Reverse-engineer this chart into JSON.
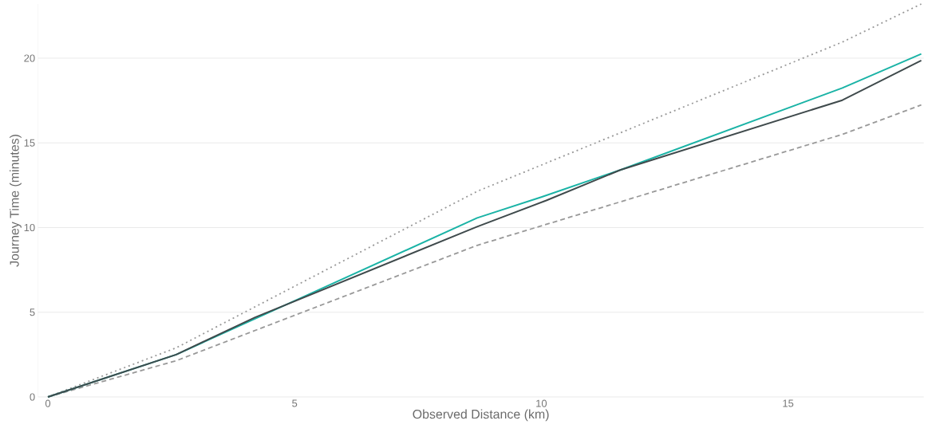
{
  "chart_data": {
    "type": "line",
    "xlabel": "Observed Distance (km)",
    "ylabel": "Journey Time (minutes)",
    "xlim": [
      -0.2,
      17.75
    ],
    "ylim": [
      0,
      23.2
    ],
    "xticks": [
      0,
      5,
      10,
      15
    ],
    "yticks": [
      0,
      5,
      10,
      15,
      20
    ],
    "grid": "y",
    "series": [
      {
        "color": "#999999",
        "line_style": "dotted",
        "x": [
          0,
          2.6,
          8.7,
          16.1,
          17.7
        ],
        "values": [
          0,
          2.9,
          12.14,
          20.95,
          23.2
        ]
      },
      {
        "color": "#999999",
        "line_style": "dashed",
        "x": [
          0,
          2.6,
          8.7,
          16.1,
          17.7
        ],
        "values": [
          0,
          2.14,
          8.95,
          15.5,
          17.24
        ]
      },
      {
        "color": "#1ab3a6",
        "line_style": "solid",
        "x": [
          0,
          2.6,
          8.7,
          10.0,
          11.6,
          16.1,
          17.7
        ],
        "values": [
          0,
          2.5,
          10.57,
          11.8,
          13.4,
          18.24,
          20.25
        ]
      },
      {
        "color": "#3f4a4c",
        "line_style": "solid",
        "x": [
          0,
          2.6,
          4.2,
          8.7,
          10.1,
          11.6,
          16.1,
          17.7
        ],
        "values": [
          0,
          2.5,
          4.7,
          10.05,
          11.6,
          13.4,
          17.52,
          19.86
        ]
      }
    ]
  }
}
